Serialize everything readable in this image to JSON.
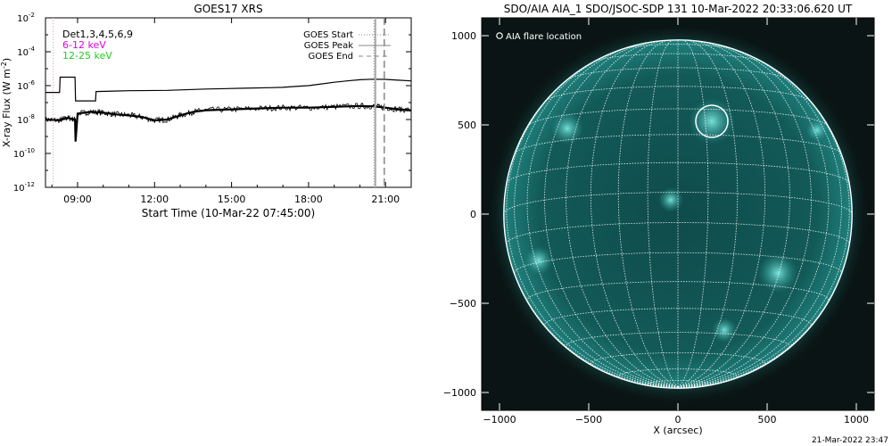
{
  "chart_data": [
    {
      "type": "line",
      "title": "GOES17 XRS",
      "xlabel": "Start Time (10-Mar-22 07:45:00)",
      "ylabel_text": "X-ray Flux (W m",
      "ylabel_sup": "-2",
      "ylabel_end": ")",
      "xlim": [
        7.75,
        22.0
      ],
      "ylim_log10": [
        -12,
        -2
      ],
      "y_scale": "log",
      "x_ticks": [
        {
          "v": 9,
          "label": "09:00"
        },
        {
          "v": 12,
          "label": "12:00"
        },
        {
          "v": 15,
          "label": "15:00"
        },
        {
          "v": 18,
          "label": "18:00"
        },
        {
          "v": 21,
          "label": "21:00"
        }
      ],
      "y_ticks": [
        {
          "e": -2,
          "base": "10",
          "exp": "-2"
        },
        {
          "e": -4,
          "base": "10",
          "exp": "-4"
        },
        {
          "e": -6,
          "base": "10",
          "exp": "-6"
        },
        {
          "e": -8,
          "base": "10",
          "exp": "-8"
        },
        {
          "e": -10,
          "base": "10",
          "exp": "-10"
        },
        {
          "e": -12,
          "base": "10",
          "exp": "-12"
        }
      ],
      "legend_left": [
        {
          "label": "Det1,3,4,5,6,9",
          "color": "#000000"
        },
        {
          "label": "6-12 keV",
          "color": "#dd00dd"
        },
        {
          "label": "12-25 keV",
          "color": "#22cc22"
        }
      ],
      "legend_right": [
        {
          "label": "GOES Start",
          "style": "dotted"
        },
        {
          "label": "GOES Peak",
          "style": "solid"
        },
        {
          "label": "GOES End",
          "style": "dashed"
        }
      ],
      "markers": {
        "goes_start": 20.55,
        "goes_peak": 20.55,
        "goes_end": 20.95,
        "pink_dotted": 8.05
      },
      "series": [
        {
          "key": "long",
          "x": [
            7.75,
            8.3,
            8.32,
            8.9,
            8.92,
            9.7,
            9.72,
            11.0,
            12.5,
            14.0,
            15.5,
            16.5,
            17.0,
            17.5,
            18.0,
            18.5,
            19.0,
            19.5,
            20.0,
            20.5,
            21.0,
            21.5,
            22.0
          ],
          "y": [
            -6.4,
            -6.4,
            -5.5,
            -5.5,
            -6.9,
            -6.9,
            -6.35,
            -6.3,
            -6.28,
            -6.2,
            -6.15,
            -6.12,
            -6.1,
            -6.05,
            -6.0,
            -5.9,
            -5.8,
            -5.72,
            -5.65,
            -5.62,
            -5.63,
            -5.68,
            -5.72
          ]
        },
        {
          "key": "short",
          "x": [
            7.75,
            8.3,
            8.6,
            8.9,
            8.92,
            9.0,
            9.5,
            10.0,
            10.5,
            11.0,
            11.5,
            12.0,
            12.5,
            13.0,
            13.5,
            14.0,
            15.0,
            16.0,
            17.0,
            18.0,
            19.0,
            20.0,
            20.5,
            21.0,
            21.5,
            22.0
          ],
          "y": [
            -8.0,
            -8.05,
            -7.9,
            -8.0,
            -9.3,
            -7.65,
            -7.55,
            -7.6,
            -7.7,
            -7.75,
            -7.85,
            -8.05,
            -8.0,
            -7.75,
            -7.55,
            -7.45,
            -7.4,
            -7.35,
            -7.3,
            -7.3,
            -7.25,
            -7.2,
            -7.22,
            -7.3,
            -7.4,
            -7.45
          ]
        }
      ]
    },
    {
      "type": "scatter",
      "title": "SDO/AIA AIA_1 SDO/JSOC-SDP 131 10-Mar-2022 20:33:06.620 UT",
      "xlabel": "X (arcsec)",
      "ylabel": "",
      "xlim": [
        -1100,
        1100
      ],
      "ylim": [
        -1100,
        1100
      ],
      "x_ticks": [
        -1000,
        -500,
        0,
        500,
        1000
      ],
      "y_ticks": [
        1000,
        500,
        0,
        -500,
        -1000
      ],
      "x_tick_labels": [
        "−1000",
        "−500",
        "0",
        "500",
        "1000"
      ],
      "y_tick_labels": [
        "1000",
        "500",
        "0",
        "−500",
        "−1000"
      ],
      "solar_radius_arcsec": 976,
      "legend": "AIA flare location",
      "flare_location": {
        "x": 190,
        "y": 520,
        "r": 90
      },
      "colors": {
        "background": "#0a1414",
        "disk": "#0f4646",
        "active": "#5fd6cf"
      },
      "timestamp": "21-Mar-2022 23:47"
    }
  ]
}
